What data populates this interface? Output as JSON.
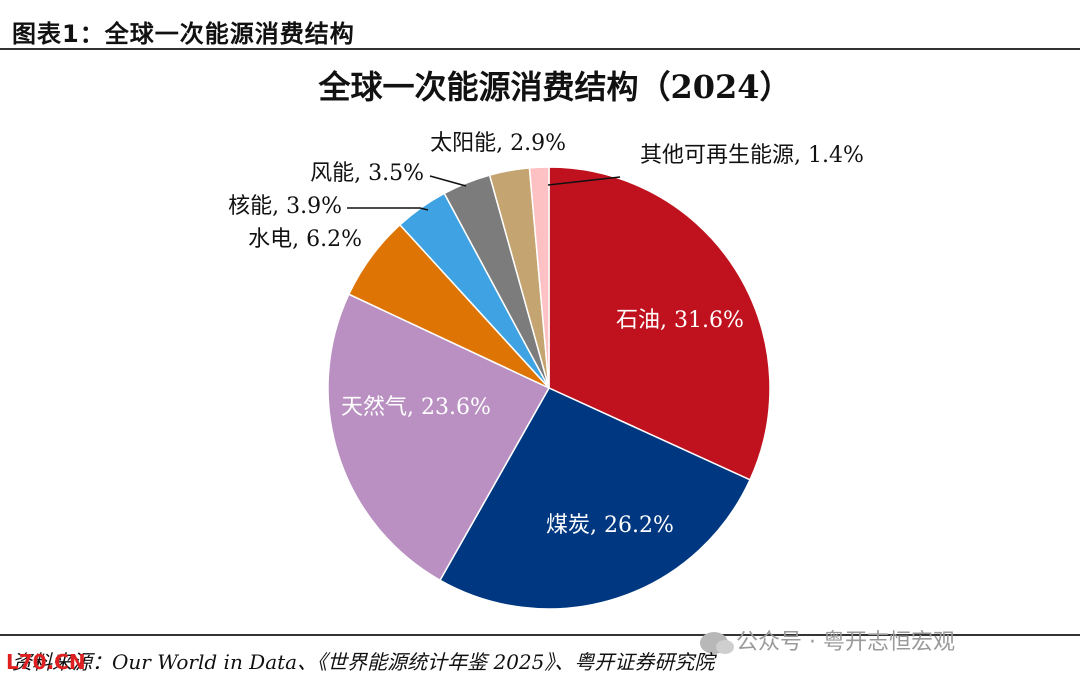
{
  "header": {
    "figure_label": "图表1：全球一次能源消费结构"
  },
  "chart_data": {
    "type": "pie",
    "title": "全球一次能源消费结构（2024）",
    "unit": "%",
    "start_angle_deg": 0,
    "direction": "clockwise",
    "slices": [
      {
        "name": "石油",
        "value": 31.6,
        "label": "石油, 31.6%",
        "color": "#c0121e"
      },
      {
        "name": "煤炭",
        "value": 26.2,
        "label": "煤炭, 26.2%",
        "color": "#003781"
      },
      {
        "name": "天然气",
        "value": 23.6,
        "label": "天然气, 23.6%",
        "color": "#b990c1"
      },
      {
        "name": "水电",
        "value": 6.2,
        "label": "水电, 6.2%",
        "color": "#de7404"
      },
      {
        "name": "核能",
        "value": 3.9,
        "label": "核能, 3.9%",
        "color": "#3fa3e3"
      },
      {
        "name": "风能",
        "value": 3.5,
        "label": "风能, 3.5%",
        "color": "#7c7c7c"
      },
      {
        "name": "太阳能",
        "value": 2.9,
        "label": "太阳能, 2.9%",
        "color": "#c4a470"
      },
      {
        "name": "其他可再生能源",
        "value": 1.4,
        "label": "其他可再生能源, 1.4%",
        "color": "#fdc0c3"
      }
    ]
  },
  "footer": {
    "source": "资料来源：Our World in Data、《世界能源统计年鉴 2025》、粤开证券研究院",
    "watermark": "公众号 · 粤开志恒宏观",
    "site_mark": "L70.CN"
  }
}
